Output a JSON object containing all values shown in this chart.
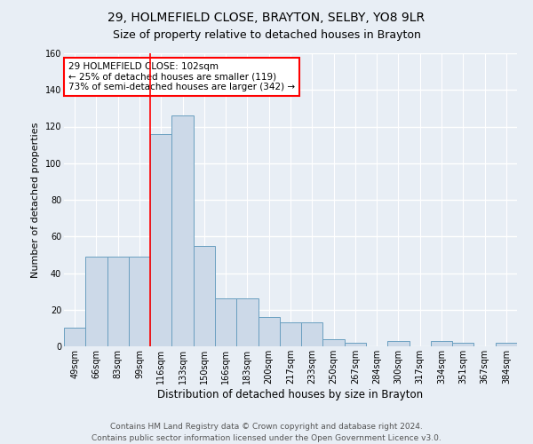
{
  "title1": "29, HOLMEFIELD CLOSE, BRAYTON, SELBY, YO8 9LR",
  "title2": "Size of property relative to detached houses in Brayton",
  "xlabel": "Distribution of detached houses by size in Brayton",
  "ylabel": "Number of detached properties",
  "categories": [
    "49sqm",
    "66sqm",
    "83sqm",
    "99sqm",
    "116sqm",
    "133sqm",
    "150sqm",
    "166sqm",
    "183sqm",
    "200sqm",
    "217sqm",
    "233sqm",
    "250sqm",
    "267sqm",
    "284sqm",
    "300sqm",
    "317sqm",
    "334sqm",
    "351sqm",
    "367sqm",
    "384sqm"
  ],
  "values": [
    10,
    49,
    49,
    49,
    116,
    126,
    55,
    26,
    26,
    16,
    13,
    13,
    4,
    2,
    0,
    3,
    0,
    3,
    2,
    0,
    2
  ],
  "bar_color": "#ccd9e8",
  "bar_edge_color": "#6a9fc0",
  "red_line_x": 3.5,
  "annotation_text": "29 HOLMEFIELD CLOSE: 102sqm\n← 25% of detached houses are smaller (119)\n73% of semi-detached houses are larger (342) →",
  "annotation_box_color": "white",
  "annotation_box_edge": "red",
  "ylim": [
    0,
    160
  ],
  "yticks": [
    0,
    20,
    40,
    60,
    80,
    100,
    120,
    140,
    160
  ],
  "footer": "Contains HM Land Registry data © Crown copyright and database right 2024.\nContains public sector information licensed under the Open Government Licence v3.0.",
  "bg_color": "#e8eef5",
  "grid_color": "white",
  "title1_fontsize": 10,
  "title2_fontsize": 9,
  "xlabel_fontsize": 8.5,
  "ylabel_fontsize": 8,
  "tick_fontsize": 7,
  "footer_fontsize": 6.5
}
